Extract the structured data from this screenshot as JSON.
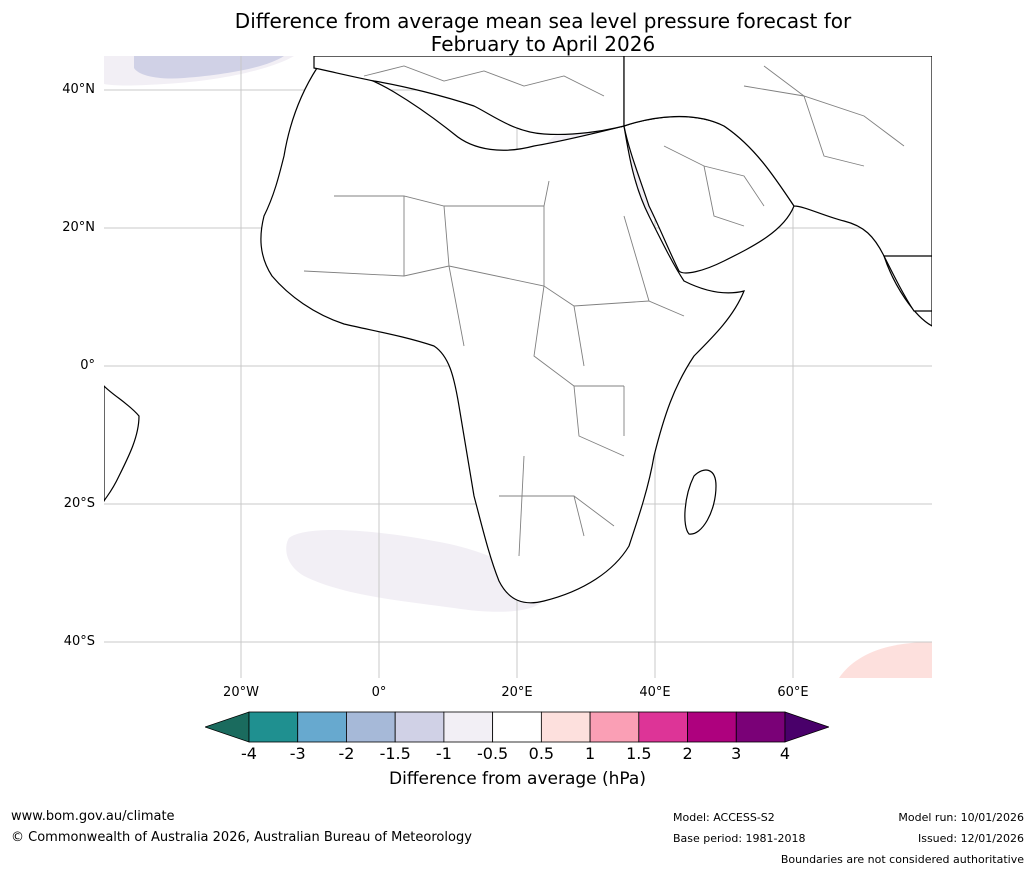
{
  "title": {
    "line1": "Difference from average mean sea level pressure forecast for",
    "line2": "February to April 2026"
  },
  "map": {
    "lat_labels": [
      "40°N",
      "20°N",
      "0°",
      "20°S",
      "40°S"
    ],
    "lon_labels": [
      "20°W",
      "0°",
      "20°E",
      "40°E",
      "60°E"
    ],
    "land_color": "#ffffff",
    "coast_color": "#000000",
    "border_color": "#808080",
    "grid_color": "#c8c8c8"
  },
  "colorbar": {
    "ticks": [
      "-4",
      "-3",
      "-2",
      "-1.5",
      "-1",
      "-0.5",
      "0.5",
      "1",
      "1.5",
      "2",
      "3",
      "4"
    ],
    "colors": [
      "#1a6b5e",
      "#1f9090",
      "#67a9cf",
      "#a6b9d8",
      "#d0d1e6",
      "#f2eff5",
      "#ffffff",
      "#fde0dd",
      "#fa9fb5",
      "#dd3497",
      "#ae017e",
      "#7a0177",
      "#49006a"
    ],
    "label": "Difference from average (hPa)"
  },
  "footer": {
    "url": "www.bom.gov.au/climate",
    "copyright": "© Commonwealth of Australia 2026, Australian Bureau of Meteorology",
    "model": "Model: ACCESS-S2",
    "base_period": "Base period: 1981-2018",
    "model_run": "Model run: 10/01/2026",
    "issued": "Issued: 12/01/2026",
    "disclaimer": "Boundaries are not considered authoritative"
  }
}
